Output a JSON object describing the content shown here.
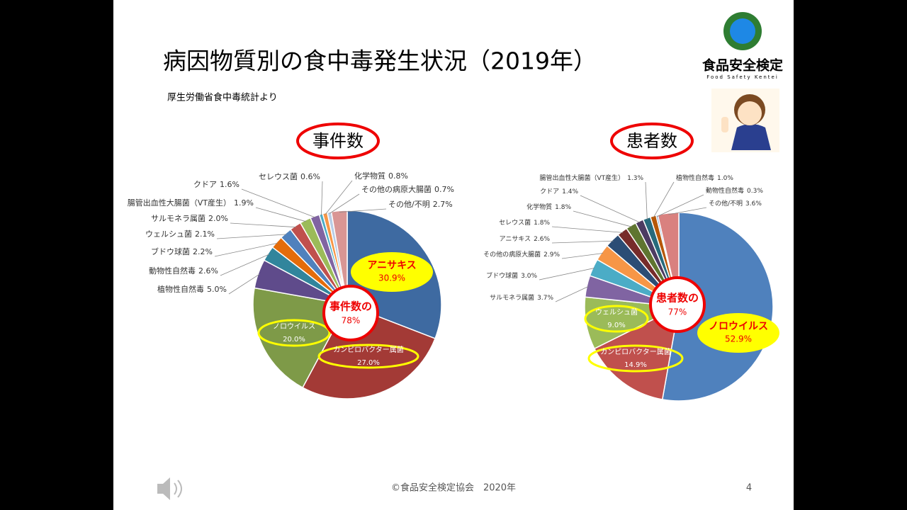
{
  "header": {
    "title": "病因物質別の食中毒発生状況（2019年）",
    "source": "厚生労働省食中毒統計より",
    "logo": "食品安全検定",
    "logo_sub": "Food Safety Kentei"
  },
  "chart_data": [
    {
      "type": "pie",
      "title": "事件数",
      "categories": [
        "アニサキス",
        "カンピロバクター属菌",
        "ノロウイルス",
        "植物性自然毒",
        "動物性自然毒",
        "ブドウ球菌",
        "ウェルシュ菌",
        "サルモネラ属菌",
        "腸管出血性大腸菌（VT産生）",
        "クドア",
        "セレウス菌",
        "化学物質",
        "その他の病原大腸菌",
        "その他/不明"
      ],
      "values": [
        30.9,
        27.0,
        20.0,
        5.0,
        2.6,
        2.2,
        2.1,
        2.0,
        1.9,
        1.6,
        0.6,
        0.8,
        0.7,
        2.7
      ],
      "value_labels": [
        "30.9%",
        "27.0%",
        "20.0%",
        "5.0%",
        "2.6%",
        "2.2%",
        "2.1%",
        "2.0%",
        "1.9%",
        "1.6%",
        "0.6%",
        "0.8%",
        "0.7%",
        "2.7%"
      ],
      "colors": [
        "#3e6aa1",
        "#a33a36",
        "#7e9a48",
        "#5f4b8b",
        "#31859c",
        "#e46c0a",
        "#4f81bd",
        "#c0504d",
        "#9bbb59",
        "#8064a2",
        "#4bacc6",
        "#f79646",
        "#b9cde5",
        "#d99694"
      ],
      "center_label": "事件数の",
      "center_value": 78,
      "center_value_label": "78%"
    },
    {
      "type": "pie",
      "title": "患者数",
      "categories": [
        "ノロウイルス",
        "カンピロバクター属菌",
        "ウェルシュ菌",
        "サルモネラ属菌",
        "ブドウ球菌",
        "その他の病原大腸菌",
        "アニサキス",
        "セレウス菌",
        "化学物質",
        "クドア",
        "腸管出血性大腸菌（VT産生）",
        "植物性自然毒",
        "動物性自然毒",
        "その他/不明"
      ],
      "values": [
        52.9,
        14.9,
        9.0,
        3.7,
        3.0,
        2.9,
        2.6,
        1.8,
        1.8,
        1.4,
        1.3,
        1.0,
        0.3,
        3.6
      ],
      "value_labels": [
        "52.9%",
        "14.9%",
        "9.0%",
        "3.7%",
        "3.0%",
        "2.9%",
        "2.6%",
        "1.8%",
        "1.8%",
        "1.4%",
        "1.3%",
        "1.0%",
        "0.3%",
        "3.6%"
      ],
      "colors": [
        "#4f81bd",
        "#c0504d",
        "#9bbb59",
        "#8064a2",
        "#4bacc6",
        "#f79646",
        "#2c4d75",
        "#772c2a",
        "#5f7530",
        "#4d3b62",
        "#276a7c",
        "#b65708",
        "#729aca",
        "#d9817f"
      ],
      "center_label": "患者数の",
      "center_value": 77,
      "center_value_label": "77%"
    }
  ],
  "footer": {
    "copyright": "©食品安全検定協会　2020年",
    "page": 4
  }
}
